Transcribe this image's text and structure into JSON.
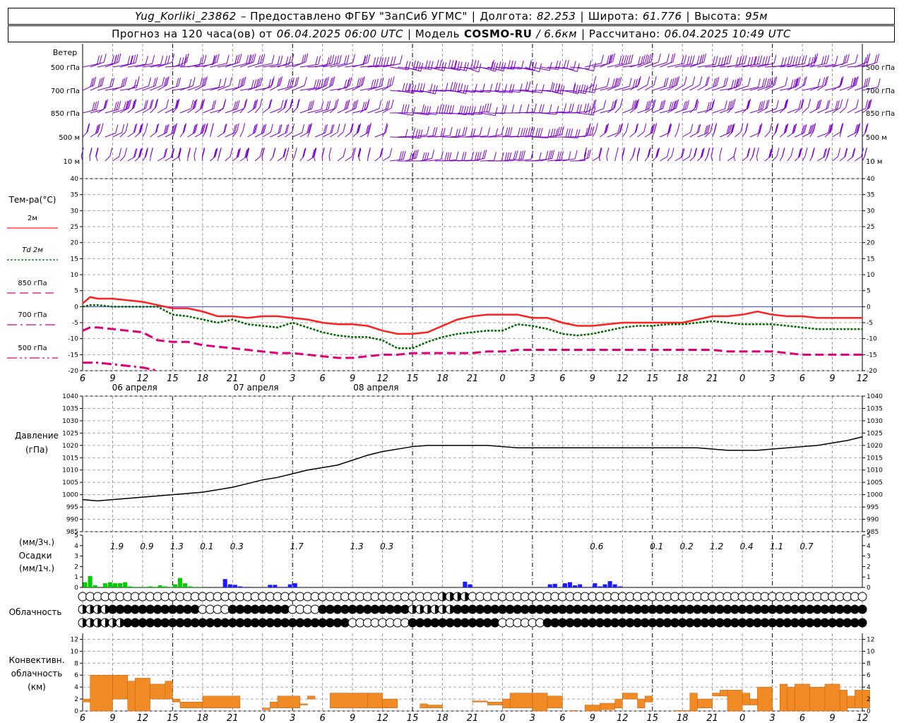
{
  "header": {
    "station": "Yug_Korliki_23862",
    "provider": "– Предоставлено ФГБУ \"ЗапСиб УГМС\"",
    "lon_label": "Долгота:",
    "lon_value": "82.253",
    "lat_label": "Широта:",
    "lat_value": "61.776",
    "alt_label": "Высота:",
    "alt_value": "95м",
    "forecast_label": "Прогноз на 120 часа(ов) от",
    "forecast_date": "06.04.2025 06:00 UTC",
    "model_label": "| Модель",
    "model_name": "COSMO-RU",
    "model_res": "/ 6.6км",
    "calc_label": "| Рассчитано:",
    "calc_date": "06.04.2025 10:49 UTC"
  },
  "wind_panel": {
    "title": "Ветер",
    "levels": [
      "500 гПа",
      "700 гПа",
      "850 гПа",
      "500 м",
      "10 м"
    ],
    "color": "#7a00cc"
  },
  "temp_panel": {
    "title": "Тем-ра(°С)",
    "legend": [
      {
        "label": "2м",
        "color": "#ff2020",
        "style": "solid"
      },
      {
        "label": "Td 2м",
        "color": "#006600",
        "style": "dotted"
      },
      {
        "label": "850 гПа",
        "color": "#e0007a",
        "style": "dashed"
      },
      {
        "label": "700 гПа",
        "color": "#e0007a",
        "style": "dashdot"
      },
      {
        "label": "500 гПа",
        "color": "#e0007a",
        "style": "dashdotdot"
      }
    ],
    "yticks": [
      "40",
      "35",
      "30",
      "25",
      "20",
      "15",
      "10",
      "5",
      "0",
      "-5",
      "-10",
      "-15",
      "-20"
    ]
  },
  "pressure_panel": {
    "title": "Давление",
    "unit": "(гПа)",
    "yticks": [
      "1040",
      "1035",
      "1030",
      "1025",
      "1020",
      "1015",
      "1010",
      "1005",
      "1000",
      "995",
      "990",
      "985"
    ]
  },
  "precip_panel": {
    "unit3": "(мм/3ч.)",
    "title": "Осадки",
    "unit1": "(мм/1ч.)",
    "yticks": [
      "5",
      "4",
      "3",
      "2",
      "1",
      "0"
    ],
    "sums": [
      "1.9",
      "0.9",
      "1.3",
      "0.1",
      "0.3",
      "1.7",
      "1.3",
      "0.3",
      "0.6",
      "0.1",
      "0.2",
      "1.2",
      "0.4",
      "1.1",
      "0.7"
    ],
    "sum_hours": [
      9,
      15,
      21,
      27,
      33,
      45,
      57,
      63,
      105,
      117,
      123,
      129,
      135,
      141,
      147
    ],
    "snow_color": "#00cc00",
    "rain_color": "#1a1aff"
  },
  "cloud_panel": {
    "title": "Облачность"
  },
  "conv_panel": {
    "title1": "Конвективн.",
    "title2": "облачность",
    "unit": "(км)",
    "yticks": [
      "12",
      "10",
      "8",
      "6",
      "4",
      "2",
      "0"
    ],
    "color": "#f08a24"
  },
  "time_axis": {
    "hour_labels": [
      "6",
      "9",
      "12",
      "15",
      "18",
      "21",
      "0",
      "3",
      "6",
      "9",
      "12",
      "15",
      "18",
      "21",
      "0",
      "3",
      "6",
      "9",
      "12",
      "15",
      "18",
      "21",
      "0",
      "3",
      "6",
      "9",
      "12"
    ],
    "day_labels": [
      "06 апреля",
      "07 апреля",
      "08 апреля"
    ]
  },
  "chart_data": [
    {
      "type": "line",
      "title": "Тем-ра(°С)",
      "x_hours_from_start": [
        0,
        1.5,
        3,
        6,
        9,
        12,
        15,
        18,
        21,
        24,
        27,
        30,
        33,
        36,
        39,
        42,
        45,
        48,
        51,
        54,
        57,
        60,
        63,
        66,
        69,
        72,
        75,
        78,
        81,
        84,
        87,
        90,
        93,
        96,
        99,
        102,
        105,
        108,
        111,
        114,
        117,
        120,
        123,
        126,
        129,
        132,
        135,
        138,
        141,
        144,
        147,
        150,
        153,
        156
      ],
      "ylim": [
        -20,
        40
      ],
      "series": [
        {
          "name": "2м",
          "values": [
            1,
            3,
            2.5,
            2.5,
            2,
            1.5,
            0.5,
            -0.5,
            -0.5,
            -1.5,
            -3,
            -3,
            -3.5,
            -3,
            -3,
            -3.5,
            -4,
            -5,
            -5.5,
            -5.5,
            -6,
            -7.5,
            -8.5,
            -8.5,
            -8,
            -6,
            -4,
            -3,
            -2.5,
            -2.5,
            -2.5,
            -3.5,
            -3.5,
            -5,
            -6,
            -6,
            -5.5,
            -5,
            -5,
            -5,
            -5,
            -5,
            -4,
            -3,
            -3,
            -2.5,
            -1.5,
            -2.5,
            -3,
            -3,
            -3.5,
            -3.5,
            -3.5,
            -3.5
          ]
        },
        {
          "name": "Td 2м",
          "values": [
            0,
            0.5,
            0.5,
            0,
            0,
            0,
            0,
            -2.5,
            -3,
            -4,
            -5,
            -4,
            -5.5,
            -6,
            -6.5,
            -5,
            -6.5,
            -8,
            -9,
            -9.5,
            -9.5,
            -10.5,
            -13,
            -13,
            -11,
            -9.5,
            -8.5,
            -8,
            -7.5,
            -7.5,
            -5.5,
            -6,
            -7,
            -8.5,
            -9,
            -8.5,
            -7.5,
            -6.5,
            -6,
            -6,
            -5.5,
            -5.5,
            -5,
            -4.5,
            -5,
            -5.5,
            -5.5,
            -5.5,
            -6,
            -6.5,
            -7,
            -7,
            -7,
            -7
          ]
        },
        {
          "name": "850 гПа",
          "values": [
            -7.5,
            -6.5,
            -6.5,
            -7,
            -7.5,
            -8,
            -10.5,
            -11,
            -11,
            -12,
            -12.5,
            -13,
            -13.5,
            -14,
            -14.5,
            -14.5,
            -15,
            -15.5,
            -16,
            -16,
            -15.5,
            -15,
            -15,
            -14.5,
            -14.5,
            -14.5,
            -14.5,
            -14.5,
            -14,
            -14,
            -13.5,
            -13.5,
            -13.5,
            -13.5,
            -13.5,
            -13.5,
            -13.5,
            -13.5,
            -13.5,
            -13.5,
            -13.5,
            -13.5,
            -13.5,
            -13.5,
            -14,
            -14,
            -14,
            -14,
            -14.5,
            -15,
            -15,
            -15,
            -15,
            -15
          ]
        },
        {
          "name": "700 гПа",
          "values": [
            -17.5,
            -17.5,
            -17.5,
            -18,
            -18.5,
            -19,
            -20
          ]
        },
        {
          "name": "500 гПа",
          "values": []
        }
      ]
    },
    {
      "type": "line",
      "title": "Давление",
      "ylabel": "(гПа)",
      "ylim": [
        985,
        1040
      ],
      "x_hours_from_start": [
        0,
        3,
        6,
        9,
        12,
        15,
        18,
        21,
        24,
        27,
        30,
        33,
        36,
        39,
        42,
        45,
        48,
        51,
        54,
        57,
        60,
        63,
        66,
        69,
        72,
        75,
        78,
        81,
        84,
        87,
        90,
        93,
        96,
        99,
        102,
        105,
        108,
        111,
        114,
        117,
        120,
        123,
        126,
        129,
        132,
        135,
        138,
        141,
        144,
        147,
        150,
        153,
        156
      ],
      "values": [
        998,
        997.5,
        998,
        998.5,
        999,
        999.5,
        1000,
        1000.5,
        1001,
        1002,
        1003,
        1004.5,
        1006,
        1007,
        1008.5,
        1010,
        1011,
        1012,
        1014,
        1016,
        1017.5,
        1018.5,
        1019.5,
        1020,
        1020,
        1020,
        1020,
        1020,
        1019.5,
        1019,
        1019,
        1019,
        1019,
        1019,
        1019,
        1019,
        1019,
        1019,
        1019,
        1019,
        1019,
        1019,
        1018.5,
        1018,
        1018,
        1018,
        1018.5,
        1019,
        1019.5,
        1020,
        1021,
        1022,
        1023.5
      ]
    },
    {
      "type": "bar",
      "title": "Осадки",
      "ylabel": "(мм/1ч.)",
      "ylim": [
        0,
        5
      ],
      "bar_hours_from_start": [
        0,
        1,
        2,
        4,
        5,
        6,
        7,
        8,
        9,
        10,
        11,
        12,
        13,
        14,
        15,
        16,
        17,
        18,
        19,
        20,
        21,
        22,
        23,
        28,
        29,
        30,
        31,
        32,
        33,
        37,
        38,
        39,
        40,
        41,
        42,
        76,
        77,
        93,
        94,
        96,
        97,
        98,
        99,
        100,
        101,
        102,
        103,
        104,
        105,
        106,
        107
      ],
      "values": [
        0.5,
        1.1,
        0.2,
        0.4,
        0.5,
        0.4,
        0.4,
        0.5,
        0.1,
        0.05,
        0.05,
        0.05,
        0.1,
        0.05,
        0.2,
        0.1,
        0.05,
        0.3,
        0.9,
        0.4,
        0.1,
        0.05,
        0.05,
        0.8,
        0.3,
        0.25,
        0.1,
        0.05,
        0.05,
        0.25,
        0.25,
        0.05,
        0.05,
        0.3,
        0.4,
        0.55,
        0.3,
        0.3,
        0.35,
        0.4,
        0.5,
        0.2,
        0.3,
        0.05,
        0.05,
        0.4,
        0.1,
        0.3,
        0.6,
        0.3,
        0.1
      ]
    },
    {
      "type": "bar",
      "title": "Конвективн. облачность",
      "ylabel": "(км)",
      "ylim": [
        0,
        13
      ],
      "bars": [
        [
          0,
          1,
          1.5,
          2
        ],
        [
          1,
          4,
          0,
          6
        ],
        [
          4,
          6,
          2,
          6
        ],
        [
          6,
          7,
          0,
          5
        ],
        [
          7,
          9,
          0,
          5.5
        ],
        [
          9,
          11,
          2,
          4.5
        ],
        [
          11,
          12,
          2,
          5
        ],
        [
          12,
          13,
          1.5,
          2
        ],
        [
          13,
          16,
          0.5,
          1.5
        ],
        [
          16,
          21,
          0.5,
          2.5
        ],
        [
          24,
          25,
          0.2,
          0.5
        ],
        [
          25,
          26,
          0.5,
          1.5
        ],
        [
          26,
          29,
          0.5,
          2.5
        ],
        [
          29,
          30,
          1,
          1.2
        ],
        [
          30,
          31,
          2,
          2.5
        ],
        [
          33,
          38,
          0.5,
          3
        ],
        [
          38,
          40,
          0.5,
          3
        ],
        [
          40,
          42,
          0.5,
          2
        ],
        [
          45,
          46,
          0.5,
          1.2
        ],
        [
          46,
          48,
          0.5,
          1
        ],
        [
          52,
          54,
          1.5,
          1.7
        ],
        [
          54,
          56,
          1,
          1.5
        ],
        [
          56,
          57,
          0.5,
          2
        ],
        [
          57,
          60,
          0.5,
          3
        ],
        [
          60,
          62,
          0,
          3
        ],
        [
          62,
          64,
          0.5,
          2.5
        ],
        [
          65,
          66,
          0,
          0.1
        ],
        [
          67,
          69,
          0,
          1
        ],
        [
          69,
          71,
          0.2,
          1.3
        ],
        [
          71,
          72,
          0.5,
          2
        ],
        [
          72,
          74,
          2,
          3
        ],
        [
          74,
          75,
          0.5,
          2
        ],
        [
          75,
          76,
          1.5,
          2.5
        ],
        [
          79,
          81,
          0,
          0.1
        ],
        [
          81,
          82,
          0,
          3
        ],
        [
          82,
          84,
          0.5,
          2
        ],
        [
          84,
          85,
          2.5,
          3
        ],
        [
          85,
          86,
          2.5,
          3.5
        ],
        [
          86,
          88,
          0,
          3.5
        ],
        [
          88,
          89,
          1,
          3
        ],
        [
          89,
          90,
          1,
          2
        ],
        [
          90,
          92,
          0,
          4
        ],
        [
          92,
          93,
          0,
          0
        ],
        [
          93,
          94,
          0,
          4.5
        ],
        [
          94,
          95,
          0,
          4
        ],
        [
          95,
          97,
          0,
          4.5
        ],
        [
          97,
          99,
          0,
          4
        ],
        [
          99,
          101,
          0,
          4.5
        ],
        [
          101,
          102,
          0,
          3.5
        ],
        [
          102,
          103,
          0.5,
          2.5
        ],
        [
          103,
          104,
          0.5,
          3.5
        ],
        [
          104,
          105,
          0.5,
          3.5
        ]
      ]
    }
  ]
}
